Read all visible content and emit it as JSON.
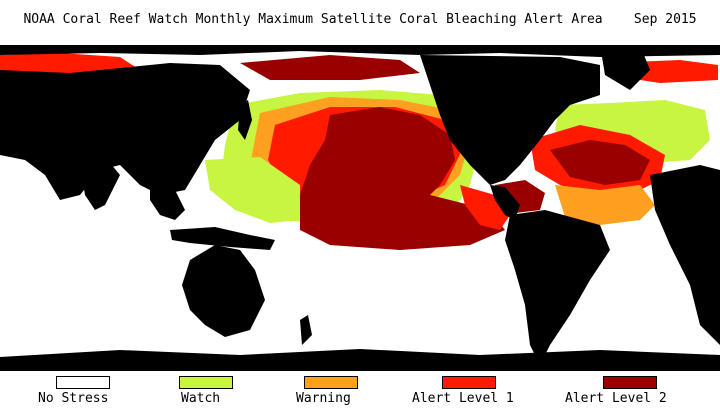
{
  "title": "NOAA Coral Reef Watch Monthly Maximum Satellite Coral Bleaching Alert Area    Sep 2015",
  "map": {
    "land_color": "#000000",
    "ocean_color": "#ffffff"
  },
  "legend": [
    {
      "label": "No Stress",
      "color": "#ffffff"
    },
    {
      "label": "Watch",
      "color": "#c8f542"
    },
    {
      "label": "Warning",
      "color": "#ffa020"
    },
    {
      "label": "Alert Level 1",
      "color": "#ff1a00"
    },
    {
      "label": "Alert Level 2",
      "color": "#990000"
    }
  ]
}
